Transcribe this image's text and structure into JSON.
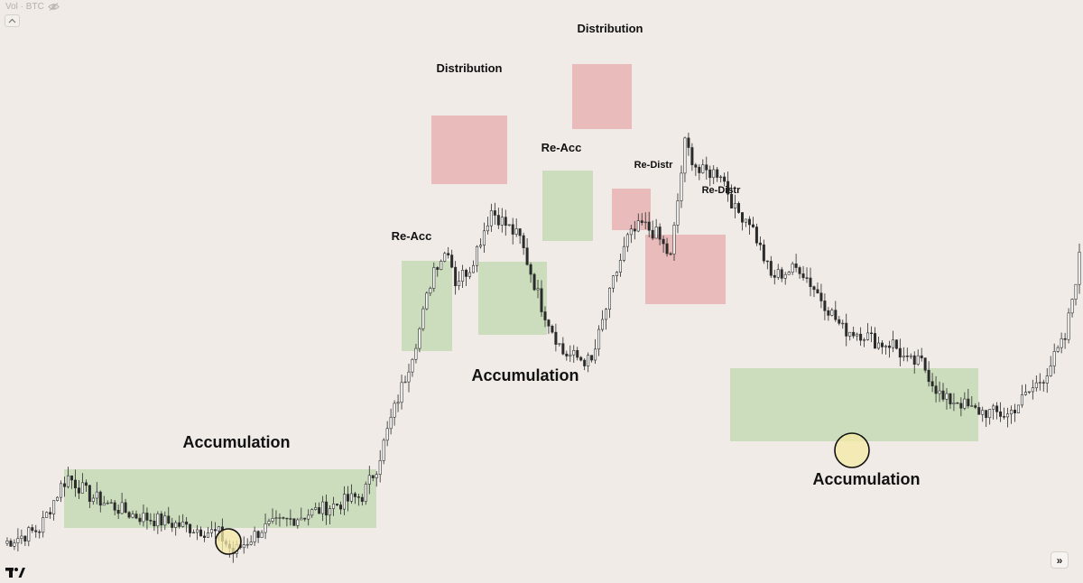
{
  "header": {
    "legend_text": "Vol · BTC",
    "eye_icon": "eye-slash-icon",
    "collapse_icon": "chevron-up-icon"
  },
  "footer": {
    "logo_icon": "tradingview-logo-icon",
    "scroll_button_icon": "double-chevron-right-icon",
    "scroll_button_glyph": "»"
  },
  "colors": {
    "background": "#f0ebe6",
    "candle": "#2b2b2b",
    "accumulation": "#c7dcb8",
    "distribution": "#e8b3b1",
    "highlight_circle": "#f6eaa6"
  },
  "chart_data": {
    "type": "candlestick",
    "title": "",
    "xlabel": "",
    "ylabel": "",
    "grid": false,
    "axes_visible": false,
    "price_path_normalized": {
      "note": "relative price level 0 (low) to 100 (high), read from candle positions; bar index 0-300",
      "points": [
        [
          0,
          0
        ],
        [
          10,
          3
        ],
        [
          16,
          12
        ],
        [
          18,
          14
        ],
        [
          24,
          10
        ],
        [
          36,
          6
        ],
        [
          48,
          4
        ],
        [
          60,
          2
        ],
        [
          64,
          -2
        ],
        [
          72,
          3
        ],
        [
          88,
          7
        ],
        [
          100,
          10
        ],
        [
          104,
          16
        ],
        [
          108,
          26
        ],
        [
          112,
          35
        ],
        [
          116,
          45
        ],
        [
          120,
          58
        ],
        [
          124,
          62
        ],
        [
          126,
          55
        ],
        [
          130,
          58
        ],
        [
          136,
          70
        ],
        [
          144,
          64
        ],
        [
          150,
          50
        ],
        [
          156,
          40
        ],
        [
          164,
          38
        ],
        [
          170,
          55
        ],
        [
          174,
          64
        ],
        [
          178,
          67
        ],
        [
          182,
          65
        ],
        [
          186,
          60
        ],
        [
          190,
          84
        ],
        [
          194,
          78
        ],
        [
          200,
          78
        ],
        [
          204,
          70
        ],
        [
          208,
          68
        ],
        [
          214,
          56
        ],
        [
          222,
          58
        ],
        [
          234,
          45
        ],
        [
          240,
          44
        ],
        [
          244,
          42
        ],
        [
          248,
          42
        ],
        [
          252,
          38
        ],
        [
          256,
          38
        ],
        [
          262,
          30
        ],
        [
          266,
          30
        ],
        [
          270,
          28
        ],
        [
          280,
          27
        ],
        [
          290,
          35
        ],
        [
          296,
          43
        ],
        [
          300,
          60
        ]
      ]
    },
    "zones": [
      {
        "type": "accumulation",
        "label": "Accumulation"
      },
      {
        "type": "accumulation",
        "label": "Re-Acc"
      },
      {
        "type": "distribution",
        "label": "Distribution"
      },
      {
        "type": "accumulation",
        "label": "Accumulation"
      },
      {
        "type": "accumulation",
        "label": "Re-Acc"
      },
      {
        "type": "distribution",
        "label": "Distribution"
      },
      {
        "type": "distribution",
        "label": "Re-Distr"
      },
      {
        "type": "distribution",
        "label": "Re-Distr"
      },
      {
        "type": "accumulation",
        "label": "Accumulation"
      }
    ],
    "highlight_circles": [
      {
        "marks": "spring low in first accumulation"
      },
      {
        "marks": "spring low in last accumulation"
      }
    ]
  }
}
